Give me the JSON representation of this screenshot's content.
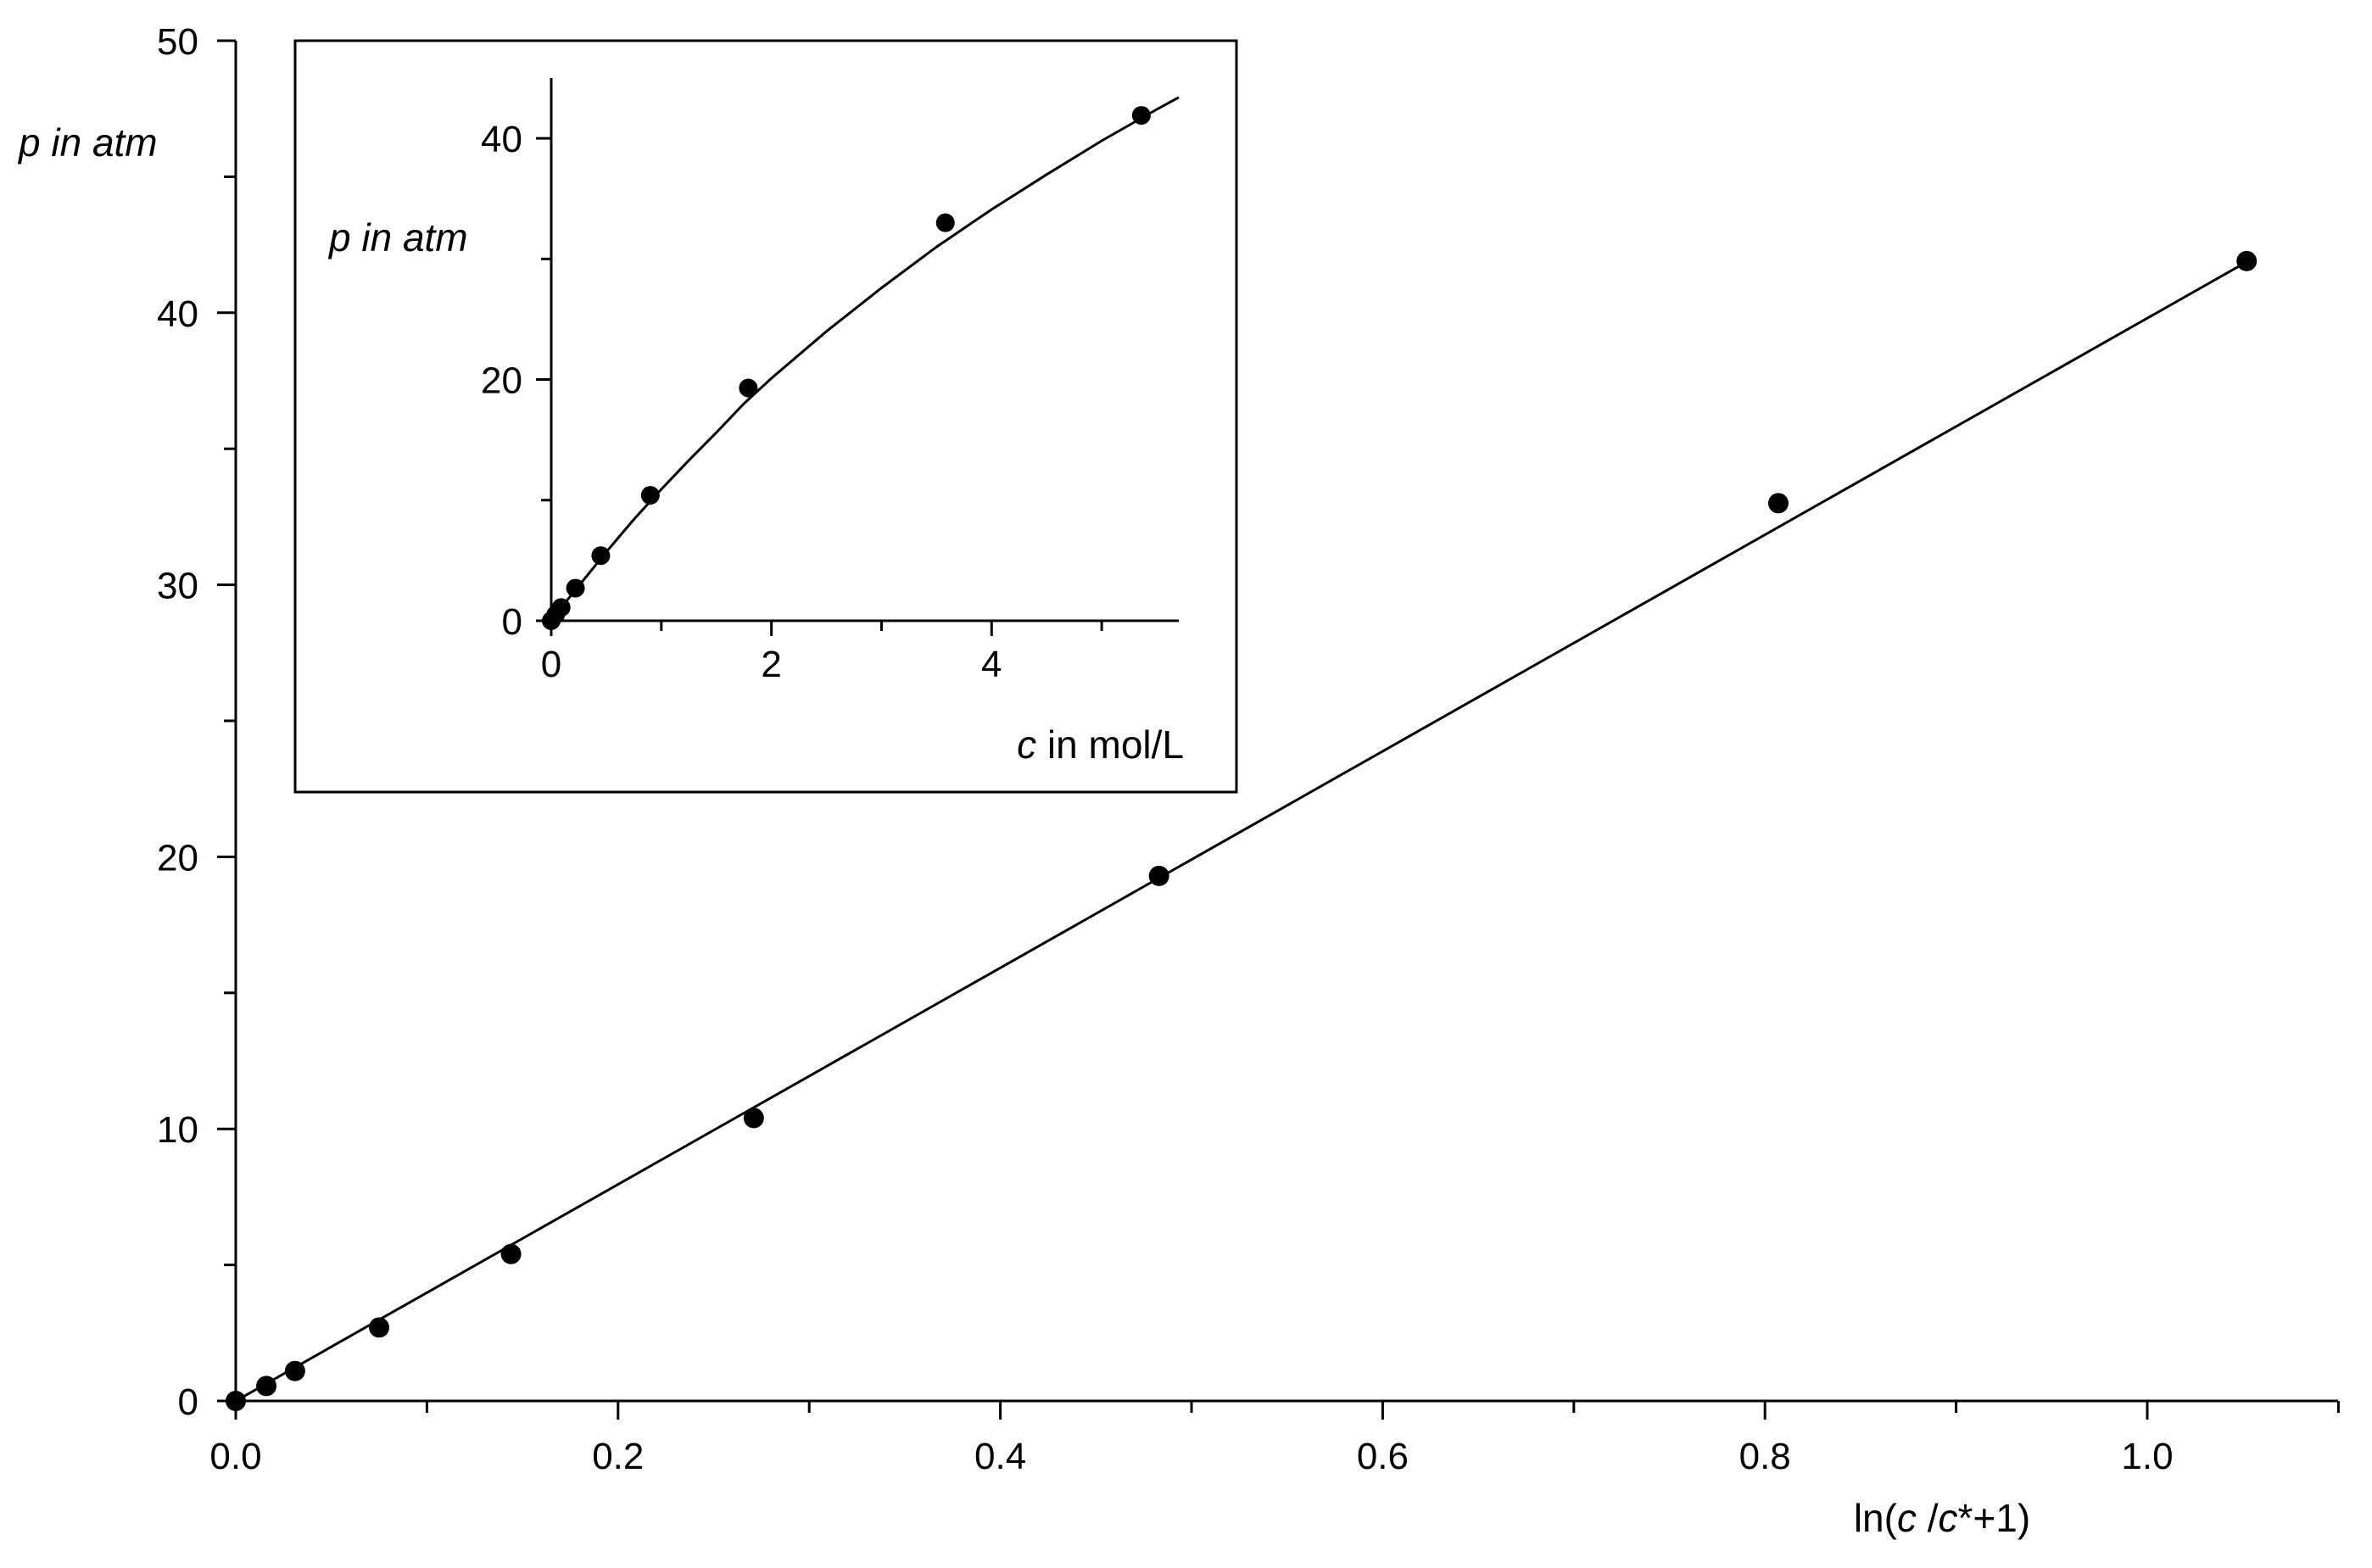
{
  "chart_data": [
    {
      "type": "scatter",
      "title": "",
      "xlabel": "ln(c /c*+1)",
      "xlabel_parts": [
        "ln(",
        "c",
        " /",
        "c",
        "*+1)"
      ],
      "ylabel": "p in atm",
      "xlim": [
        0,
        1.1
      ],
      "ylim": [
        0,
        50
      ],
      "x_ticks": [
        "0.0",
        "0.2",
        "0.4",
        "0.6",
        "0.8",
        "1.0"
      ],
      "y_ticks": [
        "0",
        "10",
        "20",
        "30",
        "40",
        "50"
      ],
      "grid": false,
      "legend": "none",
      "marker_color": "#000000",
      "line_color": "#000000",
      "series": [
        {
          "x": [
            0.0,
            0.016,
            0.031,
            0.075,
            0.144,
            0.271,
            0.483,
            0.807,
            1.052
          ],
          "y": [
            0.0,
            0.55,
            1.1,
            2.7,
            5.4,
            10.4,
            19.3,
            33.0,
            41.9
          ]
        }
      ],
      "fit_line": {
        "slope": 39.8,
        "intercept": 0.0,
        "x_range": [
          0.0,
          1.052
        ]
      }
    },
    {
      "type": "scatter",
      "title": "",
      "xlabel": "c in mol/L",
      "xlabel_parts": [
        "c",
        " in mol/L"
      ],
      "ylabel": "p in atm",
      "xlim": [
        0,
        5.7
      ],
      "ylim": [
        0,
        45
      ],
      "x_ticks": [
        "0",
        "2",
        "4"
      ],
      "y_ticks": [
        "0",
        "20",
        "40"
      ],
      "grid": false,
      "legend": "none",
      "series": [
        {
          "x": [
            0.0,
            0.04,
            0.09,
            0.22,
            0.45,
            0.9,
            1.79,
            3.58,
            5.36
          ],
          "y": [
            0.0,
            0.5,
            1.1,
            2.7,
            5.4,
            10.4,
            19.3,
            33.0,
            41.9
          ]
        }
      ],
      "fit_curve": {
        "x": [
          0.0,
          0.1,
          0.25,
          0.5,
          0.75,
          1.0,
          1.25,
          1.5,
          1.75,
          2.0,
          2.5,
          3.0,
          3.5,
          4.0,
          4.5,
          5.0,
          5.5,
          5.7
        ],
        "y": [
          0.0,
          1.2,
          2.9,
          5.7,
          8.4,
          10.9,
          13.3,
          15.6,
          18.0,
          20.1,
          24.0,
          27.6,
          31.0,
          34.1,
          37.0,
          39.8,
          42.4,
          43.4
        ]
      }
    }
  ]
}
